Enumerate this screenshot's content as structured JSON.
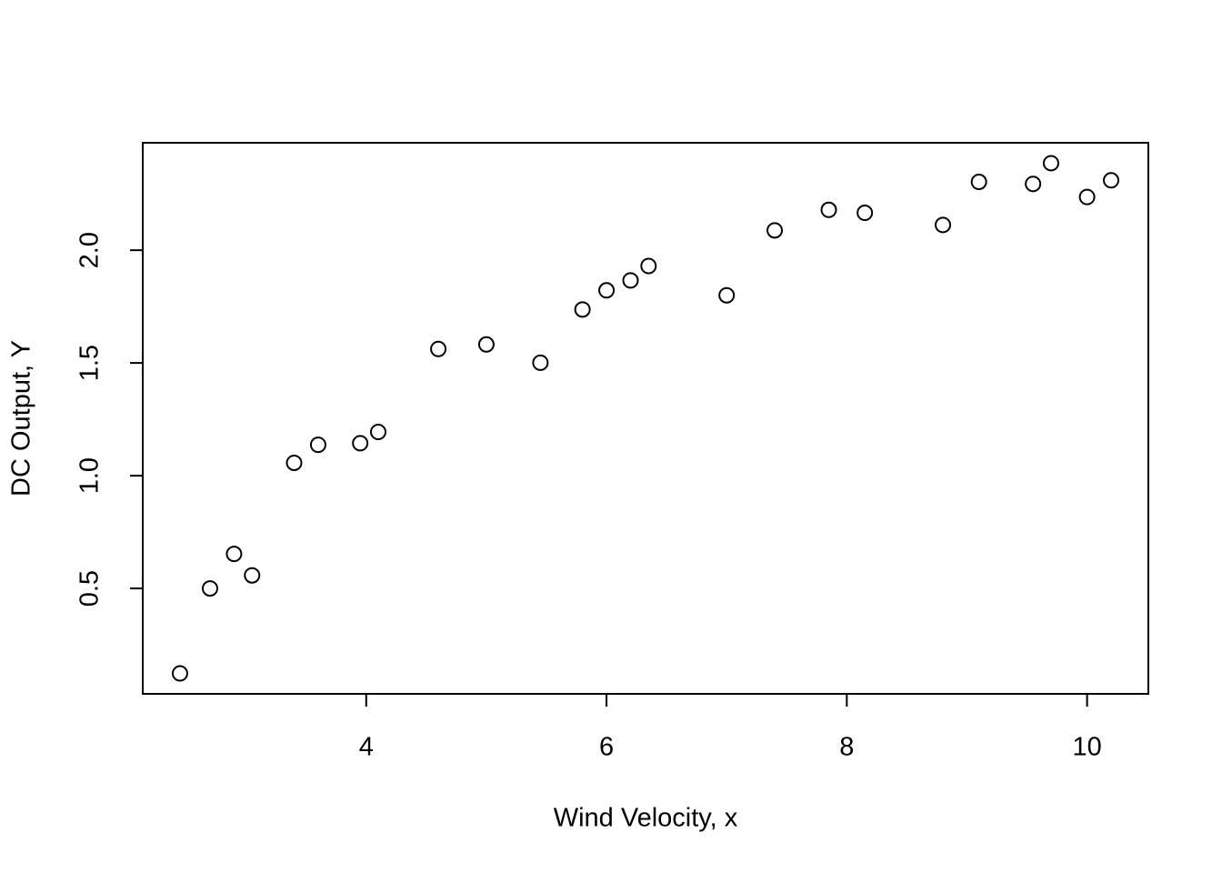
{
  "chart_data": {
    "type": "scatter",
    "x_label": "Wind Velocity, x",
    "y_label": "DC Output, Y",
    "x": [
      5.0,
      6.0,
      3.4,
      2.7,
      10.0,
      9.7,
      9.55,
      3.05,
      8.15,
      6.2,
      2.9,
      6.35,
      4.6,
      5.8,
      7.4,
      3.6,
      7.85,
      8.8,
      7.0,
      5.45,
      9.1,
      10.2,
      4.1,
      3.95,
      2.45
    ],
    "values": [
      1.582,
      1.822,
      1.057,
      0.5,
      2.236,
      2.386,
      2.294,
      0.558,
      2.166,
      1.866,
      0.653,
      1.93,
      1.562,
      1.737,
      2.088,
      1.137,
      2.179,
      2.112,
      1.8,
      1.501,
      2.303,
      2.31,
      1.194,
      1.144,
      0.123
    ],
    "color": "#000000",
    "xlim": [
      2.14,
      10.51
    ],
    "ylim": [
      0.0325,
      2.4765
    ],
    "xticks": [
      4,
      6,
      8,
      10
    ],
    "yticks": [
      0.5,
      {
        "value": 1,
        "label": "1.0"
      },
      1.5,
      {
        "value": 2,
        "label": "2.0"
      }
    ],
    "grid": false
  }
}
